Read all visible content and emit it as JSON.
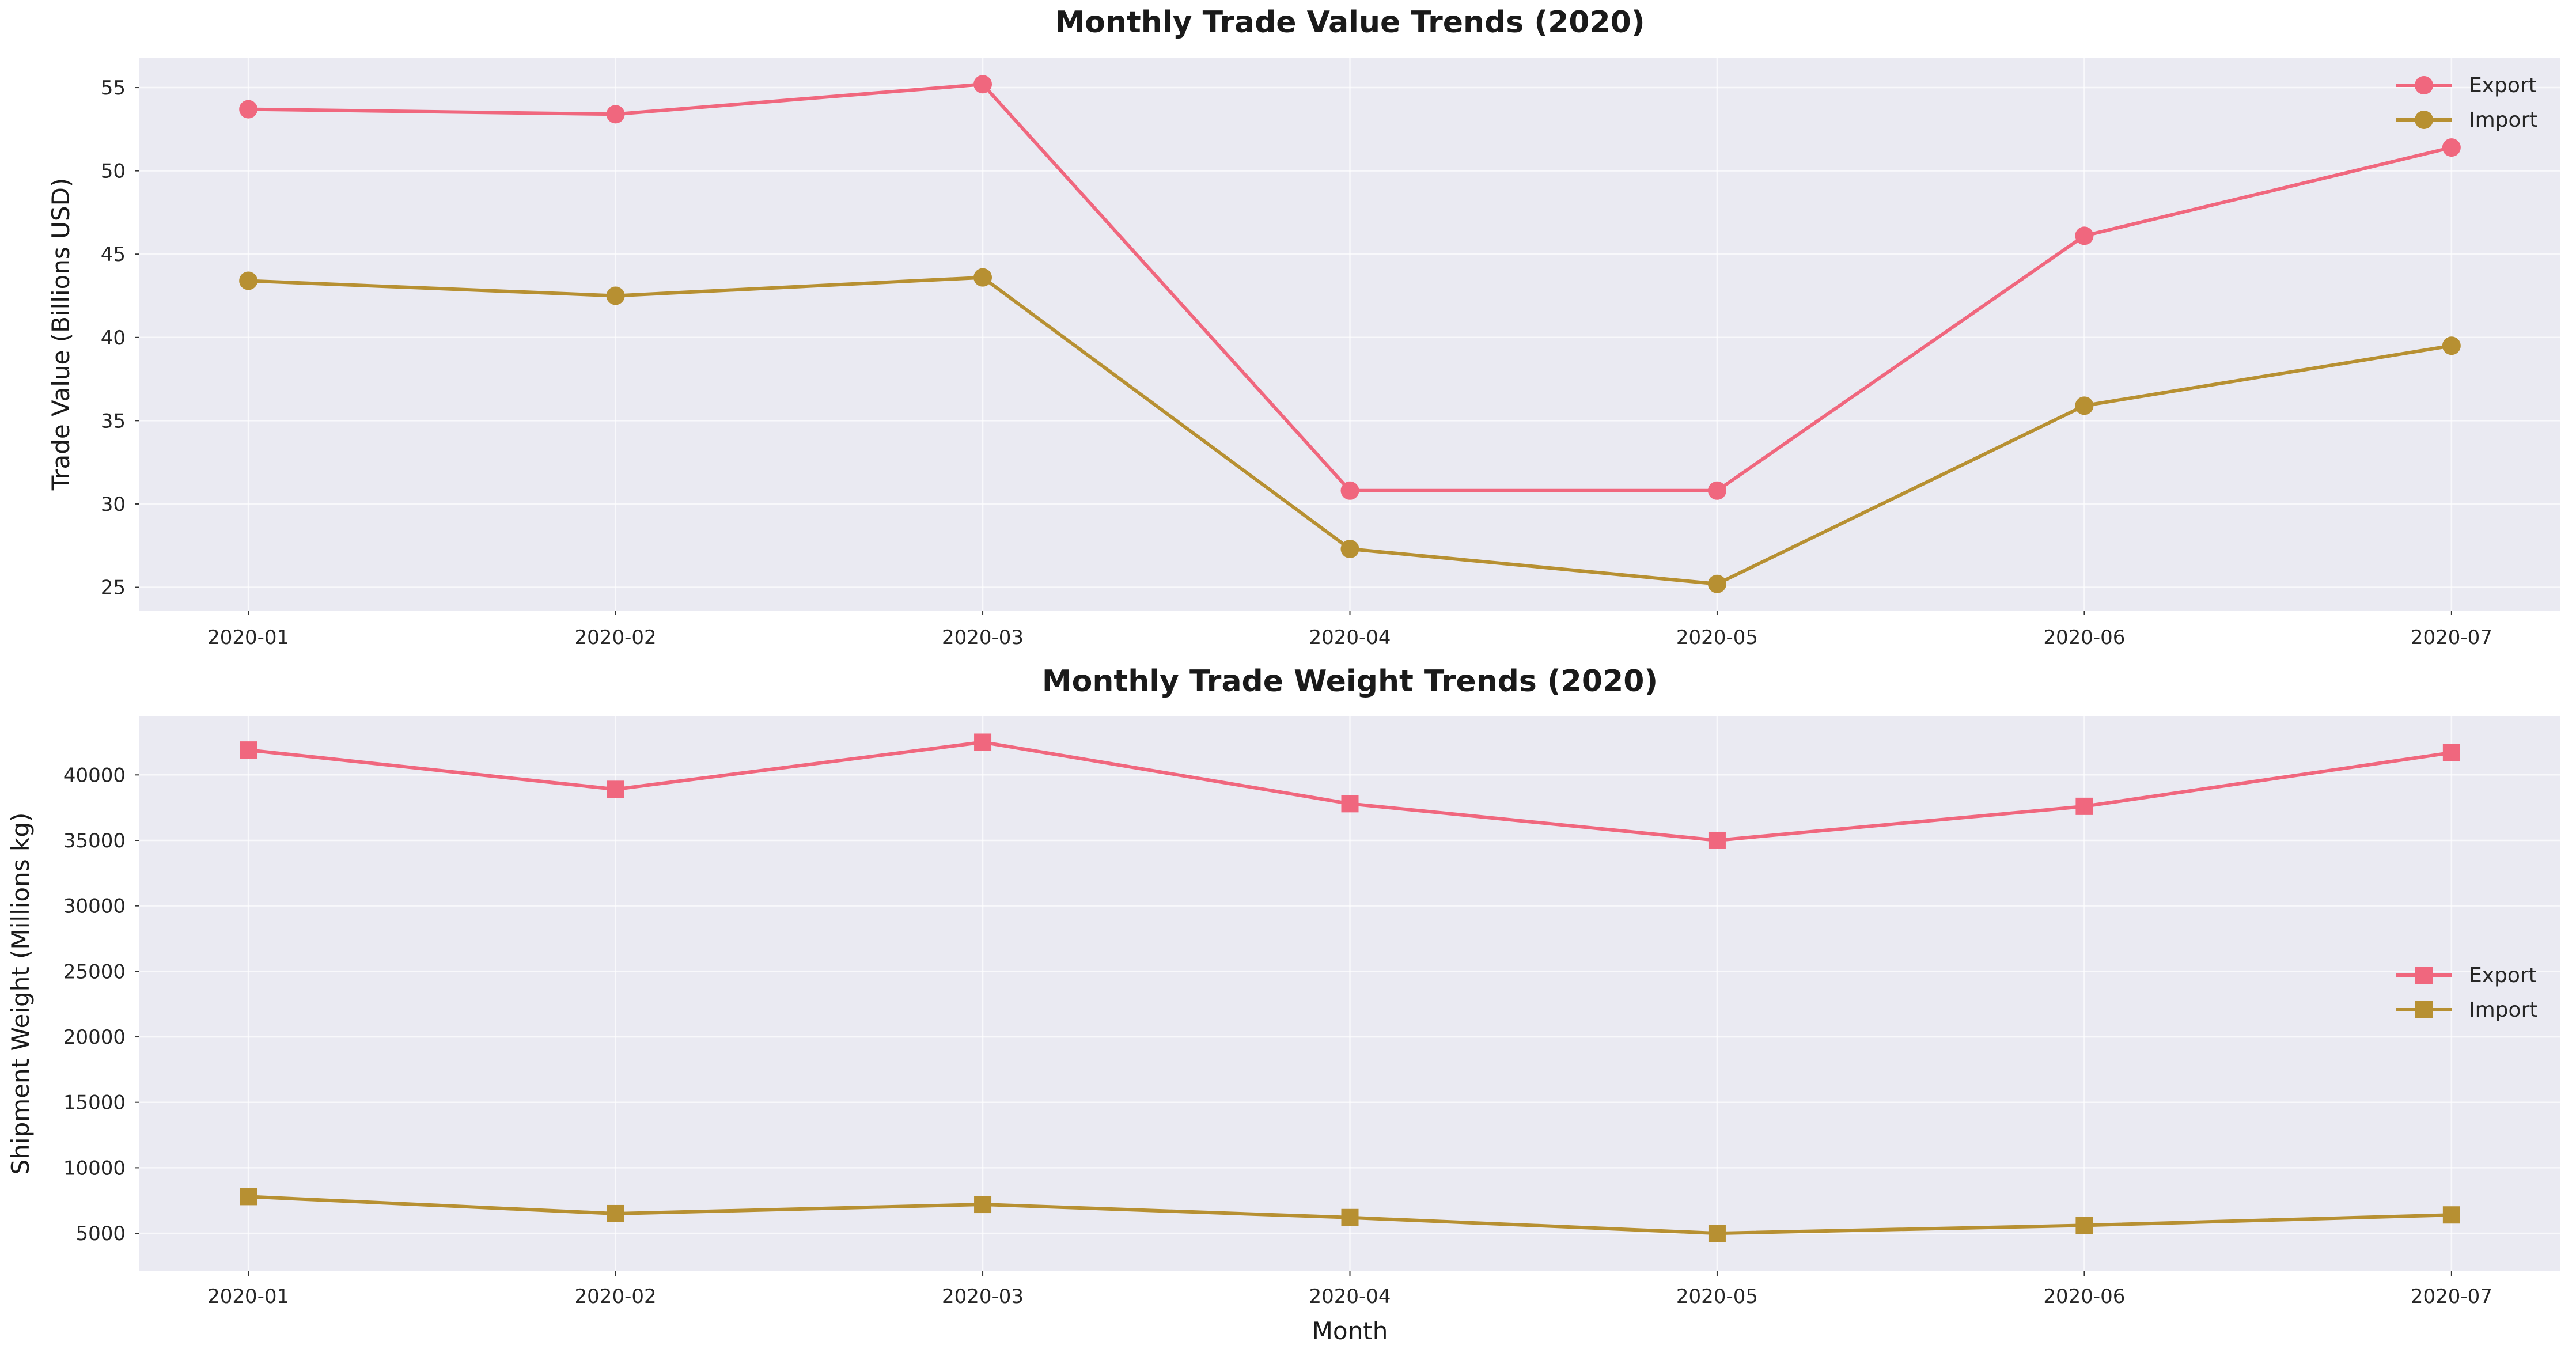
{
  "chart_data": [
    {
      "type": "line",
      "title": "Monthly Trade Value Trends (2020)",
      "xlabel": "",
      "ylabel": "Trade Value (Billions USD)",
      "categories": [
        "2020-01",
        "2020-02",
        "2020-03",
        "2020-04",
        "2020-05",
        "2020-06",
        "2020-07"
      ],
      "ylim": [
        23.6,
        56.8
      ],
      "yticks": [
        "25",
        "30",
        "35",
        "40",
        "45",
        "50",
        "55"
      ],
      "grid": true,
      "legend_position": "top-right",
      "marker": "circle",
      "series": [
        {
          "name": "Export",
          "color": "#f0677e",
          "values": [
            53.7,
            53.4,
            55.2,
            30.8,
            30.8,
            46.1,
            51.4
          ]
        },
        {
          "name": "Import",
          "color": "#b79032",
          "values": [
            43.4,
            42.5,
            43.6,
            27.3,
            25.2,
            35.9,
            39.5
          ]
        }
      ]
    },
    {
      "type": "line",
      "title": "Monthly Trade Weight Trends (2020)",
      "xlabel": "Month",
      "ylabel": "Shipment Weight (Millions kg)",
      "categories": [
        "2020-01",
        "2020-02",
        "2020-03",
        "2020-04",
        "2020-05",
        "2020-06",
        "2020-07"
      ],
      "ylim": [
        2100,
        44500
      ],
      "yticks": [
        "5000",
        "10000",
        "15000",
        "20000",
        "25000",
        "30000",
        "35000",
        "40000"
      ],
      "grid": true,
      "legend_position": "center-right",
      "marker": "square",
      "series": [
        {
          "name": "Export",
          "color": "#f0677e",
          "values": [
            41900,
            38900,
            42500,
            37800,
            35000,
            37600,
            41700
          ]
        },
        {
          "name": "Import",
          "color": "#b79032",
          "values": [
            7800,
            6500,
            7200,
            6200,
            5000,
            5600,
            6400
          ]
        }
      ]
    }
  ]
}
